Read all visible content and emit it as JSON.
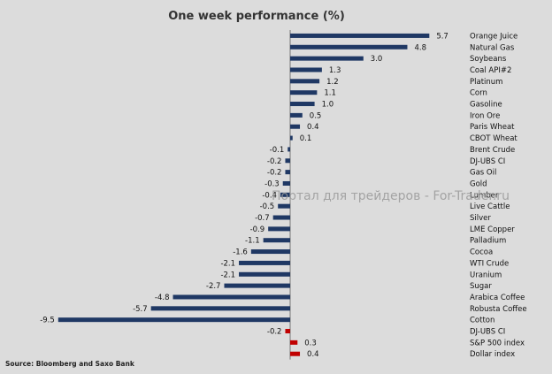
{
  "chart_data": {
    "type": "bar",
    "orientation": "horizontal",
    "title": "One week performance (%)",
    "categories": [
      "Orange Juice",
      "Natural Gas",
      "Soybeans",
      "Coal API#2",
      "Platinum",
      "Corn",
      "Gasoline",
      "Iron Ore",
      "Paris Wheat",
      "CBOT Wheat",
      "Brent Crude",
      "DJ-UBS CI",
      "Gas Oil",
      "Gold",
      "Lumber",
      "Live Cattle",
      "Silver",
      "LME Copper",
      "Palladium",
      "Cocoa",
      "WTI Crude",
      "Uranium",
      "Sugar",
      "Arabica Coffee",
      "Robusta Coffee",
      "Cotton",
      "DJ-UBS CI",
      "S&P 500 index",
      "Dollar index"
    ],
    "values": [
      5.7,
      4.8,
      3.0,
      1.3,
      1.2,
      1.1,
      1.0,
      0.5,
      0.4,
      0.1,
      -0.1,
      -0.2,
      -0.2,
      -0.3,
      -0.4,
      -0.5,
      -0.7,
      -0.9,
      -1.1,
      -1.6,
      -2.1,
      -2.1,
      -2.7,
      -4.8,
      -5.7,
      -9.5,
      -0.2,
      0.3,
      0.4
    ],
    "value_labels": [
      "5.7",
      "4.8",
      "3.0",
      "1.3",
      "1.2",
      "1.1",
      "1.0",
      "0.5",
      "0.4",
      "0.1",
      "-0.1",
      "-0.2",
      "-0.2",
      "-0.3",
      "-0.4",
      "-0.5",
      "-0.7",
      "-0.9",
      "-1.1",
      "-1.6",
      "-2.1",
      "-2.1",
      "-2.7",
      "-4.8",
      "-5.7",
      "-9.5",
      "-0.2",
      "0.3",
      "0.4"
    ],
    "highlight_from_index": 26,
    "colors": {
      "commodity": "#1f3864",
      "benchmark": "#c00000"
    },
    "legend": "none",
    "grid": false
  },
  "source": "Source: Bloomberg and Saxo Bank",
  "watermark": "Портал для трейдеров - For-Trader.ru"
}
